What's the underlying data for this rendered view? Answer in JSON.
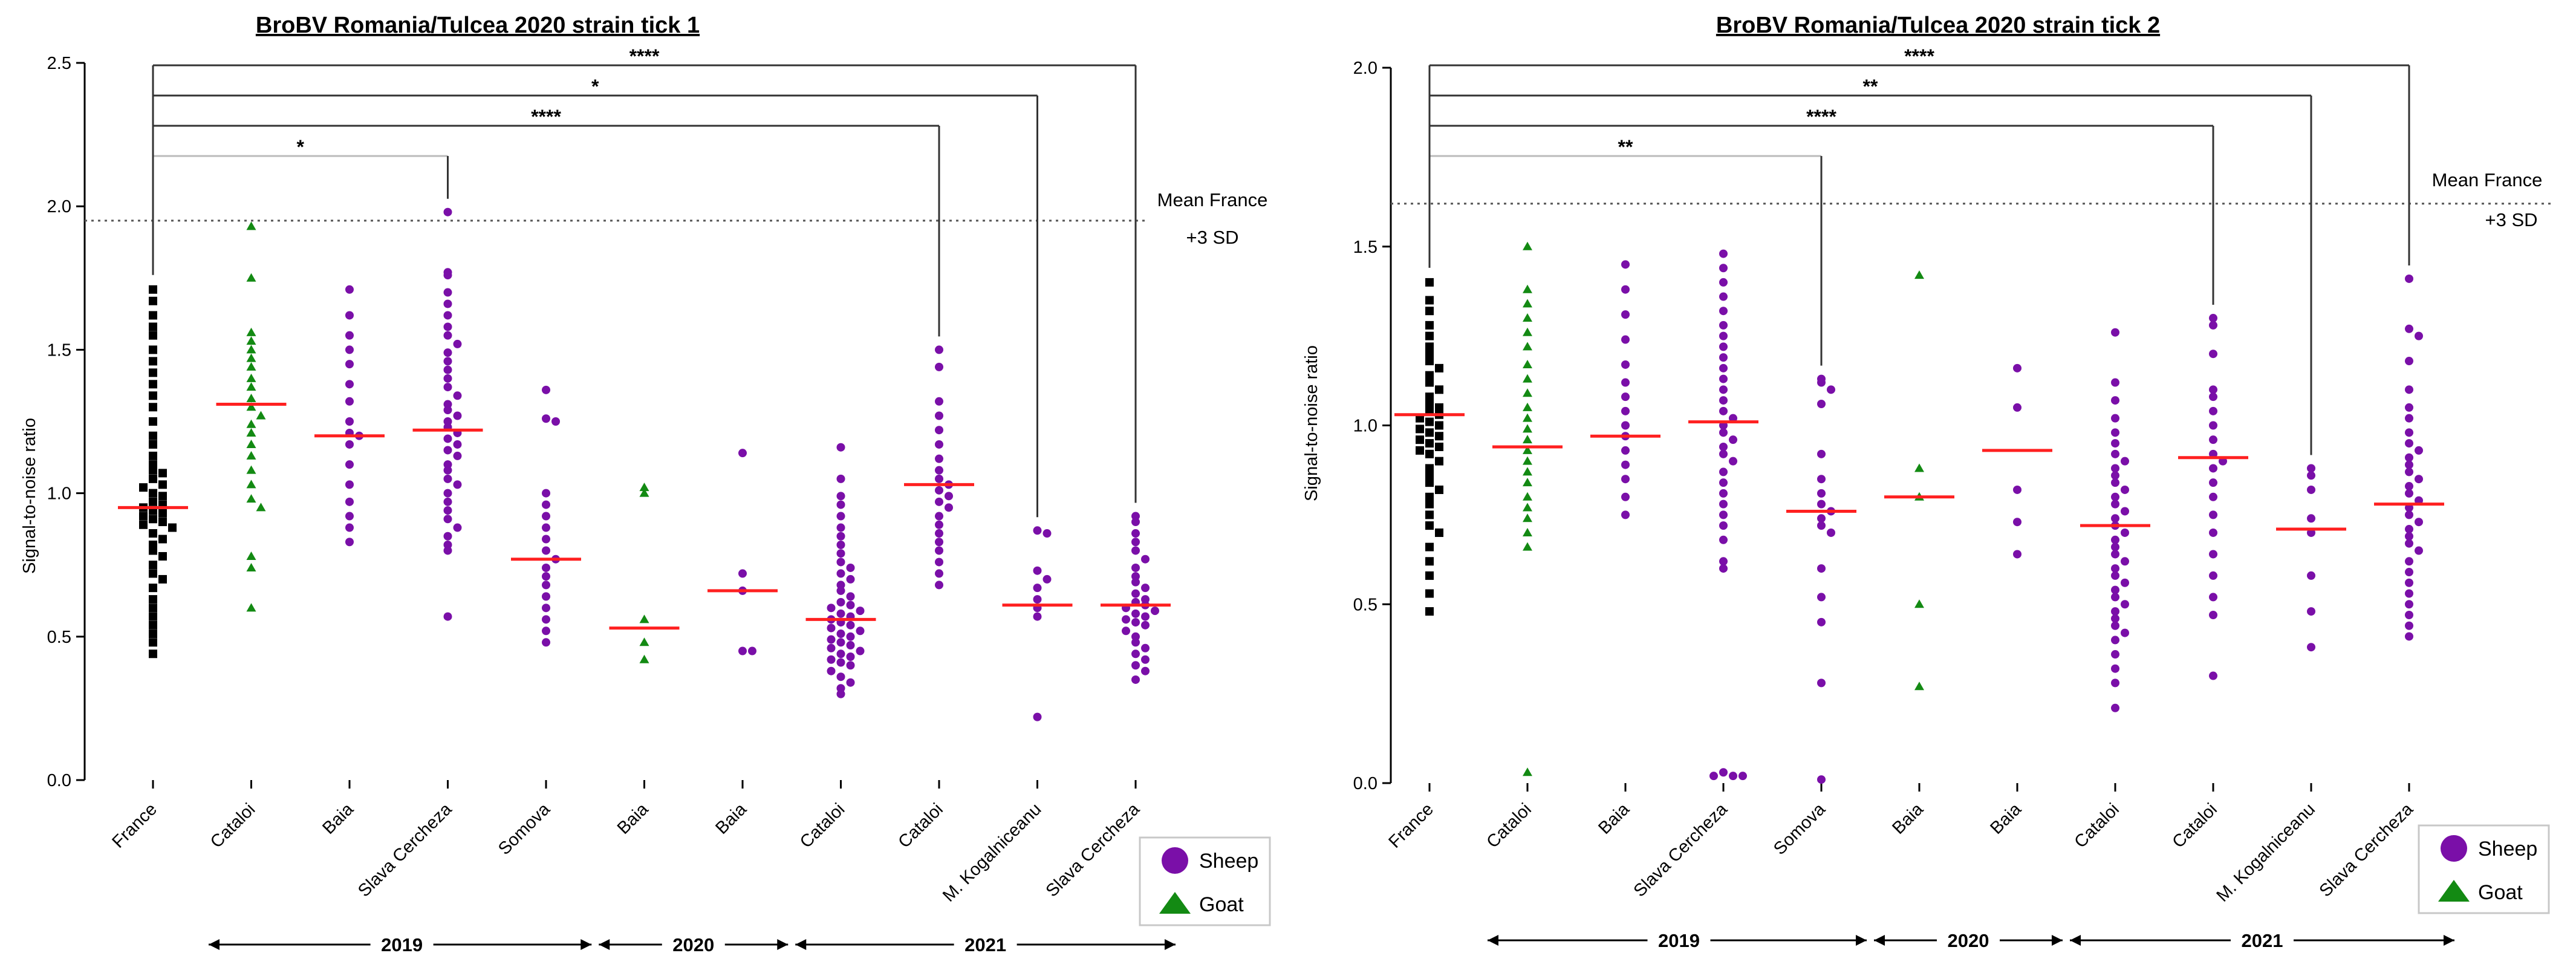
{
  "chart_data": [
    {
      "type": "scatter",
      "title": "BroBV Romania/Tulcea 2020 strain tick 1",
      "ylabel": "Signal-to-noise ratio",
      "ylim": [
        0,
        2.5
      ],
      "yticks": [
        "0.0",
        "0.5",
        "1.0",
        "1.5",
        "2.0",
        "2.5"
      ],
      "categories": [
        "France",
        "Cataloi",
        "Baia",
        "Slava Cercheza",
        "Somova",
        "Baia",
        "Baia",
        "Cataloi",
        "Cataloi",
        "M. Kogalniceanu",
        "Slava Cercheza"
      ],
      "series_species": [
        "France",
        "Goat",
        "Sheep",
        "Sheep",
        "Sheep",
        "Goat",
        "Sheep",
        "Sheep",
        "Sheep",
        "Sheep",
        "Sheep"
      ],
      "values": [
        [
          1.71,
          1.67,
          1.62,
          1.58,
          1.55,
          1.5,
          1.46,
          1.42,
          1.38,
          1.34,
          1.3,
          1.25,
          1.2,
          1.17,
          1.13,
          1.1,
          1.08,
          1.07,
          1.05,
          1.03,
          1.02,
          1.0,
          0.99,
          0.97,
          0.96,
          0.95,
          0.94,
          0.93,
          0.92,
          0.91,
          0.9,
          0.89,
          0.88,
          0.86,
          0.84,
          0.82,
          0.8,
          0.78,
          0.75,
          0.72,
          0.7,
          0.67,
          0.63,
          0.6,
          0.57,
          0.54,
          0.51,
          0.48,
          0.44
        ],
        [
          1.93,
          1.75,
          1.56,
          1.53,
          1.5,
          1.47,
          1.44,
          1.4,
          1.37,
          1.33,
          1.3,
          1.27,
          1.24,
          1.21,
          1.17,
          1.13,
          1.08,
          1.03,
          0.98,
          0.95,
          0.78,
          0.74,
          0.6
        ],
        [
          1.71,
          1.62,
          1.55,
          1.5,
          1.45,
          1.38,
          1.32,
          1.25,
          1.21,
          1.2,
          1.17,
          1.1,
          1.03,
          0.97,
          0.92,
          0.88,
          0.83
        ],
        [
          1.98,
          1.77,
          1.76,
          1.7,
          1.66,
          1.62,
          1.58,
          1.55,
          1.52,
          1.49,
          1.46,
          1.43,
          1.4,
          1.37,
          1.34,
          1.31,
          1.29,
          1.27,
          1.25,
          1.23,
          1.21,
          1.19,
          1.17,
          1.15,
          1.13,
          1.1,
          1.08,
          1.05,
          1.03,
          1.0,
          0.97,
          0.94,
          0.91,
          0.88,
          0.85,
          0.82,
          0.8,
          0.57
        ],
        [
          1.36,
          1.26,
          1.25,
          1.0,
          0.96,
          0.92,
          0.88,
          0.84,
          0.8,
          0.77,
          0.74,
          0.71,
          0.68,
          0.64,
          0.6,
          0.56,
          0.52,
          0.48
        ],
        [
          1.02,
          1.0,
          0.56,
          0.48,
          0.42
        ],
        [
          1.14,
          0.72,
          0.66,
          0.45,
          0.45
        ],
        [
          1.16,
          1.05,
          0.99,
          0.96,
          0.92,
          0.88,
          0.85,
          0.82,
          0.79,
          0.76,
          0.74,
          0.72,
          0.7,
          0.68,
          0.66,
          0.64,
          0.62,
          0.61,
          0.6,
          0.59,
          0.58,
          0.57,
          0.56,
          0.55,
          0.54,
          0.53,
          0.52,
          0.51,
          0.5,
          0.49,
          0.48,
          0.47,
          0.46,
          0.45,
          0.44,
          0.43,
          0.42,
          0.41,
          0.4,
          0.38,
          0.36,
          0.34,
          0.32,
          0.3
        ],
        [
          1.5,
          1.44,
          1.32,
          1.27,
          1.22,
          1.17,
          1.12,
          1.08,
          1.05,
          1.03,
          1.01,
          0.99,
          0.97,
          0.95,
          0.92,
          0.89,
          0.86,
          0.83,
          0.8,
          0.76,
          0.72,
          0.68
        ],
        [
          0.87,
          0.86,
          0.73,
          0.7,
          0.67,
          0.63,
          0.6,
          0.57,
          0.22
        ],
        [
          0.92,
          0.9,
          0.86,
          0.83,
          0.8,
          0.77,
          0.74,
          0.71,
          0.69,
          0.67,
          0.65,
          0.63,
          0.62,
          0.61,
          0.6,
          0.59,
          0.58,
          0.57,
          0.56,
          0.55,
          0.54,
          0.52,
          0.5,
          0.48,
          0.46,
          0.44,
          0.42,
          0.4,
          0.38,
          0.35
        ]
      ],
      "medians": [
        0.95,
        1.31,
        1.2,
        1.22,
        0.77,
        0.53,
        0.66,
        0.56,
        1.03,
        0.61,
        0.61
      ],
      "reference_line": {
        "value": 1.95,
        "label_line1": "Mean France",
        "label_line2": "+3 SD"
      },
      "comparisons": [
        {
          "from": 0,
          "to": 10,
          "label": "****"
        },
        {
          "from": 0,
          "to": 9,
          "label": "*"
        },
        {
          "from": 0,
          "to": 8,
          "label": "****"
        },
        {
          "from": 0,
          "to": 3,
          "label": "*"
        }
      ],
      "year_groups": [
        {
          "label": "2019",
          "from": 1,
          "to": 4
        },
        {
          "label": "2020",
          "from": 5,
          "to": 6
        },
        {
          "label": "2021",
          "from": 7,
          "to": 10
        }
      ],
      "legend": [
        {
          "label": "Sheep",
          "marker": "circle",
          "color": "#7a0fa8"
        },
        {
          "label": "Goat",
          "marker": "triangle",
          "color": "#138a13"
        }
      ]
    },
    {
      "type": "scatter",
      "title": "BroBV Romania/Tulcea 2020 strain tick 2",
      "ylabel": "Signal-to-noise ratio",
      "ylim": [
        0,
        2.0
      ],
      "yticks": [
        "0.0",
        "0.5",
        "1.0",
        "1.5",
        "2.0"
      ],
      "categories": [
        "France",
        "Cataloi",
        "Baia",
        "Slava Cercheza",
        "Somova",
        "Baia",
        "Baia",
        "Cataloi",
        "Cataloi",
        "M. Kogalniceanu",
        "Slava Cercheza"
      ],
      "series_species": [
        "France",
        "Goat",
        "Sheep",
        "Sheep",
        "Sheep",
        "Goat",
        "Sheep",
        "Sheep",
        "Sheep",
        "Sheep",
        "Sheep"
      ],
      "values": [
        [
          1.4,
          1.35,
          1.32,
          1.28,
          1.25,
          1.22,
          1.2,
          1.18,
          1.16,
          1.14,
          1.12,
          1.1,
          1.08,
          1.06,
          1.05,
          1.04,
          1.03,
          1.02,
          1.01,
          1.0,
          0.99,
          0.98,
          0.97,
          0.96,
          0.95,
          0.94,
          0.93,
          0.92,
          0.9,
          0.88,
          0.86,
          0.84,
          0.82,
          0.8,
          0.78,
          0.75,
          0.72,
          0.7,
          0.66,
          0.62,
          0.58,
          0.53,
          0.48
        ],
        [
          1.5,
          1.38,
          1.34,
          1.3,
          1.26,
          1.22,
          1.17,
          1.13,
          1.09,
          1.05,
          1.02,
          0.99,
          0.96,
          0.93,
          0.9,
          0.87,
          0.84,
          0.8,
          0.77,
          0.74,
          0.7,
          0.66,
          0.03
        ],
        [
          1.45,
          1.38,
          1.31,
          1.24,
          1.17,
          1.12,
          1.08,
          1.04,
          1.0,
          0.97,
          0.93,
          0.89,
          0.85,
          0.8,
          0.75
        ],
        [
          1.48,
          1.44,
          1.4,
          1.36,
          1.32,
          1.28,
          1.25,
          1.22,
          1.19,
          1.16,
          1.13,
          1.1,
          1.07,
          1.04,
          1.02,
          1.0,
          0.98,
          0.96,
          0.94,
          0.92,
          0.9,
          0.87,
          0.84,
          0.81,
          0.78,
          0.75,
          0.72,
          0.68,
          0.62,
          0.6,
          0.03,
          0.02,
          0.02,
          0.02
        ],
        [
          1.13,
          1.12,
          1.1,
          1.06,
          0.92,
          0.85,
          0.81,
          0.78,
          0.76,
          0.74,
          0.72,
          0.7,
          0.6,
          0.52,
          0.45,
          0.28,
          0.01
        ],
        [
          1.42,
          0.88,
          0.8,
          0.5,
          0.27
        ],
        [
          1.16,
          1.05,
          0.82,
          0.73,
          0.64
        ],
        [
          1.26,
          1.12,
          1.07,
          1.02,
          0.98,
          0.95,
          0.92,
          0.9,
          0.88,
          0.86,
          0.84,
          0.82,
          0.8,
          0.78,
          0.76,
          0.74,
          0.72,
          0.7,
          0.68,
          0.66,
          0.64,
          0.62,
          0.6,
          0.58,
          0.56,
          0.54,
          0.52,
          0.5,
          0.48,
          0.46,
          0.44,
          0.42,
          0.4,
          0.36,
          0.32,
          0.28,
          0.21
        ],
        [
          1.3,
          1.28,
          1.2,
          1.1,
          1.08,
          1.04,
          1.0,
          0.96,
          0.92,
          0.9,
          0.88,
          0.84,
          0.8,
          0.75,
          0.7,
          0.64,
          0.58,
          0.52,
          0.47,
          0.3
        ],
        [
          0.88,
          0.86,
          0.82,
          0.74,
          0.7,
          0.58,
          0.48,
          0.38
        ],
        [
          1.41,
          1.27,
          1.25,
          1.18,
          1.1,
          1.05,
          1.02,
          0.98,
          0.95,
          0.93,
          0.91,
          0.89,
          0.87,
          0.85,
          0.83,
          0.81,
          0.79,
          0.77,
          0.75,
          0.73,
          0.71,
          0.69,
          0.67,
          0.65,
          0.62,
          0.59,
          0.56,
          0.53,
          0.5,
          0.47,
          0.44,
          0.41
        ]
      ],
      "medians": [
        1.03,
        0.94,
        0.97,
        1.01,
        0.76,
        0.8,
        0.93,
        0.72,
        0.91,
        0.71,
        0.78
      ],
      "reference_line": {
        "value": 1.62,
        "label_line1": "Mean France",
        "label_line2": "+3 SD"
      },
      "comparisons": [
        {
          "from": 0,
          "to": 10,
          "label": "****"
        },
        {
          "from": 0,
          "to": 9,
          "label": "**"
        },
        {
          "from": 0,
          "to": 8,
          "label": "****"
        },
        {
          "from": 0,
          "to": 4,
          "label": "**"
        }
      ],
      "year_groups": [
        {
          "label": "2019",
          "from": 1,
          "to": 4
        },
        {
          "label": "2020",
          "from": 5,
          "to": 6
        },
        {
          "label": "2021",
          "from": 7,
          "to": 10
        }
      ],
      "legend": [
        {
          "label": "Sheep",
          "marker": "circle",
          "color": "#7a0fa8"
        },
        {
          "label": "Goat",
          "marker": "triangle",
          "color": "#138a13"
        }
      ]
    }
  ],
  "colors": {
    "France": "#000000",
    "Sheep": "#7a0fa8",
    "Goat": "#138a13",
    "median": "#ff2020"
  }
}
